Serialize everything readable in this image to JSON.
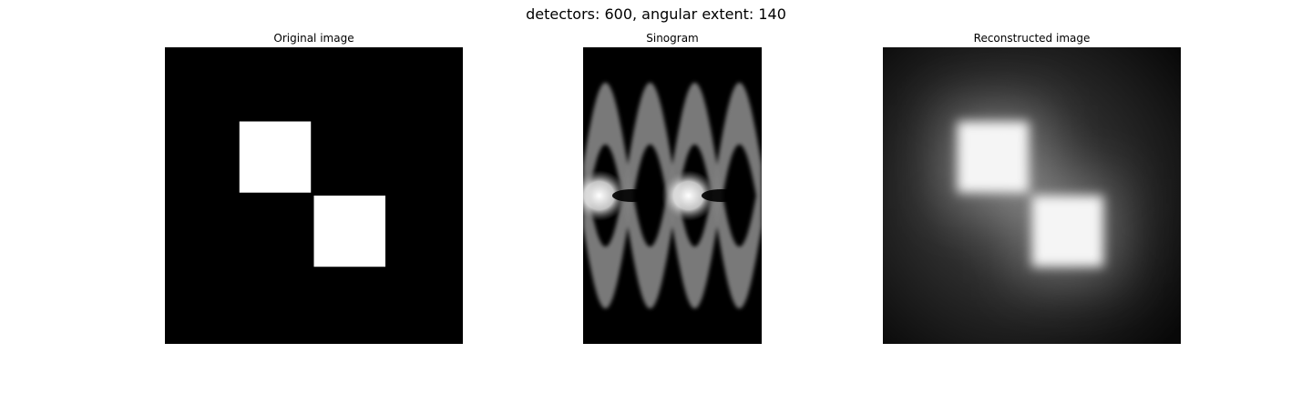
{
  "figure": {
    "suptitle": "detectors: 600, angular extent: 140",
    "background_color": "#ffffff",
    "colormap": "gray"
  },
  "chart_data": [
    {
      "type": "heatmap",
      "title": "Original image",
      "axis": "off",
      "x_range": [
        0,
        100
      ],
      "y_range": [
        0,
        100
      ],
      "background_value": 0,
      "squares": [
        {
          "x": [
            25,
            49
          ],
          "y": [
            25,
            49
          ],
          "value": 1
        },
        {
          "x": [
            50,
            74
          ],
          "y": [
            50,
            74
          ],
          "value": 1
        }
      ]
    },
    {
      "type": "heatmap",
      "title": "Sinogram",
      "axis": "off",
      "angle_range": [
        0,
        140
      ],
      "detector_range": [
        0,
        600
      ],
      "pattern": "two overlapping sinusoidal bands crossing at detector center, repeated twice across angles",
      "max_value": 1,
      "band_value": 0.5
    },
    {
      "type": "heatmap",
      "title": "Reconstructed image",
      "axis": "off",
      "x_range": [
        0,
        100
      ],
      "y_range": [
        0,
        100
      ],
      "background_value": 0.05,
      "blobs": [
        {
          "x": [
            25,
            49
          ],
          "y": [
            25,
            49
          ],
          "value": 1
        },
        {
          "x": [
            50,
            74
          ],
          "y": [
            50,
            74
          ],
          "value": 1
        }
      ],
      "blur": "strong",
      "halo": "diagonal glow around squares"
    }
  ]
}
